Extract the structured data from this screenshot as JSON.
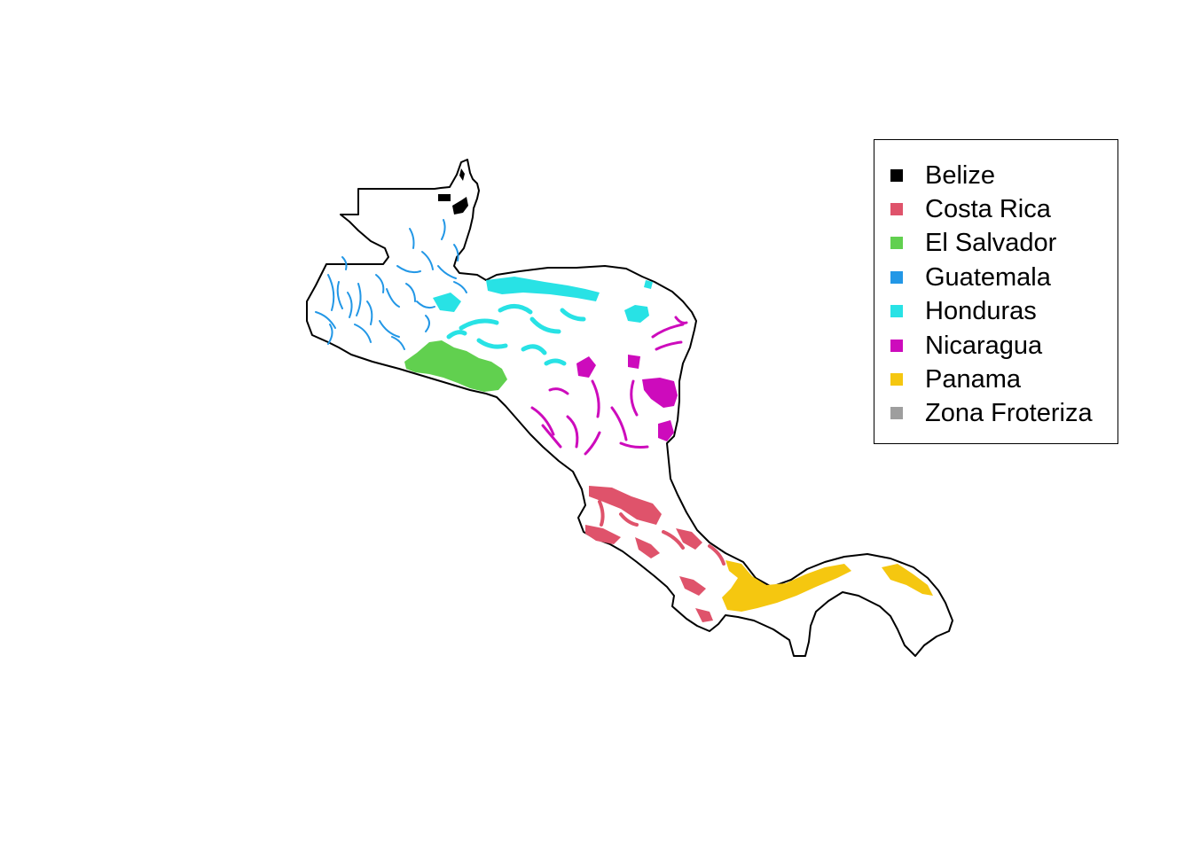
{
  "map": {
    "region": "Central America",
    "outline_color": "#000000",
    "background_color": "#ffffff"
  },
  "legend": {
    "items": [
      {
        "label": "Belize",
        "color": "#000000"
      },
      {
        "label": "Costa Rica",
        "color": "#DF536B"
      },
      {
        "label": "El Salvador",
        "color": "#61D04F"
      },
      {
        "label": "Guatemala",
        "color": "#2297E6"
      },
      {
        "label": "Honduras",
        "color": "#28E2E5"
      },
      {
        "label": "Nicaragua",
        "color": "#CD0BBC"
      },
      {
        "label": "Panama",
        "color": "#F5C710"
      },
      {
        "label": "Zona Froteriza",
        "color": "#9E9E9E"
      }
    ]
  }
}
